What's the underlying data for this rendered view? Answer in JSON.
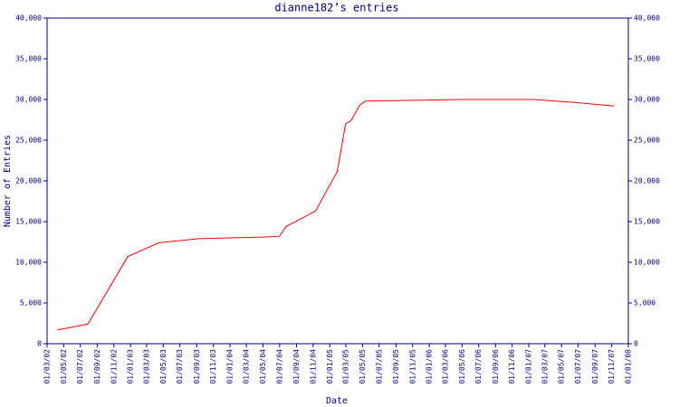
{
  "chart_data": {
    "type": "line",
    "title": "dianne182’s entries",
    "x_label": "Date",
    "y_label": "Number of Entries",
    "x": [
      "2002-04-08",
      "2002-07-28",
      "2002-12-22",
      "2003-04-15",
      "2003-09-10",
      "2004-05-01",
      "2004-06-30",
      "2004-07-25",
      "2004-11-10",
      "2004-12-25",
      "2005-01-28",
      "2005-02-28",
      "2005-03-20",
      "2005-04-20",
      "2005-05-12",
      "2005-11-15",
      "2006-05-01",
      "2007-01-22",
      "2007-07-01",
      "2007-11-10"
    ],
    "series": [
      {
        "name": "entries",
        "color": "#ff0000",
        "values": [
          1700,
          2400,
          10700,
          12400,
          12900,
          13100,
          13200,
          14400,
          16300,
          19100,
          21100,
          27000,
          27400,
          29300,
          29800,
          29900,
          30000,
          30000,
          29600,
          29200
        ]
      }
    ],
    "xlim": [
      "2002-03-01",
      "2008-01-01"
    ],
    "xticks": [
      {
        "value": "2002-03-01",
        "label": "01/03/02"
      },
      {
        "value": "2002-05-01",
        "label": "01/05/02"
      },
      {
        "value": "2002-07-01",
        "label": "01/07/02"
      },
      {
        "value": "2002-09-01",
        "label": "01/09/02"
      },
      {
        "value": "2002-11-01",
        "label": "01/11/02"
      },
      {
        "value": "2003-01-01",
        "label": "01/01/03"
      },
      {
        "value": "2003-03-01",
        "label": "01/03/03"
      },
      {
        "value": "2003-05-01",
        "label": "01/05/03"
      },
      {
        "value": "2003-07-01",
        "label": "01/07/03"
      },
      {
        "value": "2003-09-01",
        "label": "01/09/03"
      },
      {
        "value": "2003-11-01",
        "label": "01/11/03"
      },
      {
        "value": "2004-01-01",
        "label": "01/01/04"
      },
      {
        "value": "2004-03-01",
        "label": "01/03/04"
      },
      {
        "value": "2004-05-01",
        "label": "01/05/04"
      },
      {
        "value": "2004-07-01",
        "label": "01/07/04"
      },
      {
        "value": "2004-09-01",
        "label": "01/09/04"
      },
      {
        "value": "2004-11-01",
        "label": "01/11/04"
      },
      {
        "value": "2005-01-01",
        "label": "01/01/05"
      },
      {
        "value": "2005-03-01",
        "label": "01/03/05"
      },
      {
        "value": "2005-05-01",
        "label": "01/05/05"
      },
      {
        "value": "2005-07-01",
        "label": "01/07/05"
      },
      {
        "value": "2005-09-01",
        "label": "01/09/05"
      },
      {
        "value": "2005-11-01",
        "label": "01/11/05"
      },
      {
        "value": "2006-01-01",
        "label": "01/01/06"
      },
      {
        "value": "2006-03-01",
        "label": "01/03/06"
      },
      {
        "value": "2006-05-01",
        "label": "01/05/06"
      },
      {
        "value": "2006-07-01",
        "label": "01/07/06"
      },
      {
        "value": "2006-09-01",
        "label": "01/09/06"
      },
      {
        "value": "2006-11-01",
        "label": "01/11/06"
      },
      {
        "value": "2007-01-01",
        "label": "01/01/07"
      },
      {
        "value": "2007-03-01",
        "label": "01/03/07"
      },
      {
        "value": "2007-05-01",
        "label": "01/05/07"
      },
      {
        "value": "2007-07-01",
        "label": "01/07/07"
      },
      {
        "value": "2007-09-01",
        "label": "01/09/07"
      },
      {
        "value": "2007-11-01",
        "label": "01/11/07"
      },
      {
        "value": "2008-01-01",
        "label": "01/01/08"
      }
    ],
    "ylim": [
      0,
      40000
    ],
    "yticks": [
      0,
      {
        "value": 5000,
        "label": "5,000"
      },
      {
        "value": 10000,
        "label": "10,000"
      },
      {
        "value": 15000,
        "label": "15,000"
      },
      {
        "value": 20000,
        "label": "20,000"
      },
      {
        "value": 25000,
        "label": "25,000"
      },
      {
        "value": 30000,
        "label": "30,000"
      },
      {
        "value": 35000,
        "label": "35,000"
      },
      {
        "value": 40000,
        "label": "40,000"
      }
    ],
    "grid": false
  }
}
